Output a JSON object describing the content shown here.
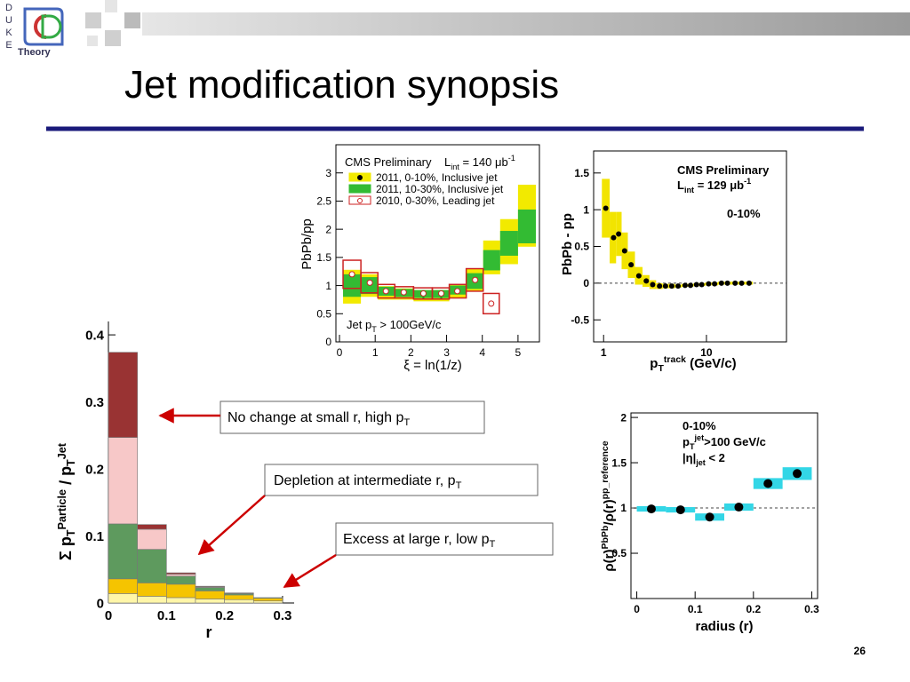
{
  "header": {
    "title": "Jet modification synopsis",
    "logo_letters": [
      "D",
      "U",
      "K",
      "E"
    ],
    "logo_text": "Theory"
  },
  "callouts": [
    [
      {
        "text": "No change at small r, high p"
      },
      {
        "text": "T",
        "pos": "sub"
      }
    ],
    [
      {
        "text": "Depletion at intermediate r, p"
      },
      {
        "text": "T",
        "pos": "sub"
      }
    ],
    [
      {
        "text": "Excess at large r, low p"
      },
      {
        "text": "T",
        "pos": "sub"
      }
    ]
  ],
  "page_number": "26",
  "charts": [
    {
      "type": "errorbar",
      "xlabel": [
        {
          "text": "ξ = ln(1/z)"
        }
      ],
      "ylabel": [
        {
          "text": "PbPb/pp"
        }
      ],
      "annotations": [
        [
          {
            "text": "CMS Preliminary"
          }
        ],
        [
          {
            "text": "L"
          },
          {
            "text": "int",
            "pos": "sub"
          },
          {
            "text": " = 140 μb"
          },
          {
            "text": "-1",
            "pos": "sup"
          }
        ],
        [
          {
            "text": "Jet p"
          },
          {
            "text": "T",
            "pos": "sub"
          },
          {
            "text": " > 100GeV/c"
          }
        ]
      ],
      "xlim": [
        -0.1,
        5.6
      ],
      "xticks": [
        0,
        1,
        2,
        3,
        4,
        5
      ],
      "ylim": [
        0,
        3.5
      ],
      "yticks": [
        0,
        0.5,
        1,
        1.5,
        2,
        2.5,
        3
      ],
      "series": [
        {
          "name": "2011, 0-10%, Inclusive jet",
          "marker": "circle",
          "color": "#000000",
          "band": "fill",
          "band_color": "#f2ea00",
          "x": [
            0.35,
            0.85,
            1.3,
            1.8,
            2.35,
            2.85,
            3.3,
            3.8,
            4.25,
            4.75,
            5.25
          ],
          "values": [
            0.98,
            1.0,
            0.87,
            0.85,
            0.82,
            0.82,
            0.9,
            1.1,
            1.5,
            1.78,
            2.24
          ],
          "errors": [
            0.3,
            0.2,
            0.12,
            0.1,
            0.1,
            0.1,
            0.12,
            0.2,
            0.3,
            0.4,
            0.55
          ]
        },
        {
          "name": "2011, 10-30%, Inclusive jet",
          "marker": "none",
          "color": "#33bb33",
          "band": "fill",
          "band_color": "#33bb33",
          "x": [
            0.35,
            0.85,
            1.3,
            1.8,
            2.35,
            2.85,
            3.3,
            3.8,
            4.25,
            4.75,
            5.25
          ],
          "values": [
            1.0,
            1.0,
            0.9,
            0.87,
            0.85,
            0.85,
            0.92,
            1.08,
            1.45,
            1.75,
            2.05
          ],
          "errors": [
            0.2,
            0.15,
            0.08,
            0.07,
            0.07,
            0.07,
            0.08,
            0.14,
            0.18,
            0.22,
            0.3
          ]
        },
        {
          "name": "2010, 0-30%, Leading jet",
          "marker": "open_circle",
          "color": "#cc2222",
          "band": "outline",
          "band_color": "#cc2222",
          "x": [
            0.35,
            0.85,
            1.3,
            1.8,
            2.35,
            2.85,
            3.3,
            3.8,
            4.25
          ],
          "values": [
            1.2,
            1.05,
            0.9,
            0.88,
            0.86,
            0.86,
            0.9,
            1.1,
            0.68
          ],
          "errors": [
            0.25,
            0.18,
            0.12,
            0.1,
            0.1,
            0.1,
            0.12,
            0.2,
            0.18
          ]
        }
      ]
    },
    {
      "type": "errorbar",
      "xlog": true,
      "hline": 0,
      "xlabel": [
        {
          "text": "p"
        },
        {
          "text": "T",
          "pos": "sub"
        },
        {
          "text": "track",
          "pos": "sup"
        },
        {
          "text": " (GeV/c)"
        }
      ],
      "ylabel": [
        {
          "text": "PbPb - pp"
        }
      ],
      "annotations": [
        [
          {
            "text": "CMS Preliminary"
          }
        ],
        [
          {
            "text": "L"
          },
          {
            "text": "int",
            "pos": "sub"
          },
          {
            "text": " = 129 μb"
          },
          {
            "text": "-1",
            "pos": "sup"
          }
        ],
        [
          {
            "text": "0-10%"
          }
        ]
      ],
      "xlim": [
        0.8,
        60
      ],
      "xticks": [
        1,
        10
      ],
      "ylim": [
        -0.8,
        1.8
      ],
      "yticks": [
        -0.5,
        0,
        0.5,
        1,
        1.5
      ],
      "series": [
        {
          "marker": "circle",
          "color": "#000000",
          "band": "fill",
          "band_color": "#f2e400",
          "x": [
            1.05,
            1.25,
            1.4,
            1.6,
            1.85,
            2.2,
            2.6,
            3,
            3.5,
            4,
            4.6,
            5.3,
            6.2,
            7,
            8,
            9,
            10.5,
            12,
            14,
            16,
            19,
            22,
            26
          ],
          "values": [
            1.02,
            0.62,
            0.67,
            0.44,
            0.25,
            0.1,
            0.03,
            -0.02,
            -0.04,
            -0.04,
            -0.04,
            -0.04,
            -0.03,
            -0.03,
            -0.02,
            -0.02,
            -0.01,
            -0.01,
            0,
            0,
            0,
            0,
            0
          ],
          "errors": [
            0.4,
            0.35,
            0.3,
            0.25,
            0.18,
            0.12,
            0.08,
            0.06,
            0.04,
            0.03,
            0.03,
            0.02,
            0.02,
            0.02,
            0.02,
            0.02,
            0.02,
            0.02,
            0.02,
            0.02,
            0.02,
            0.02,
            0.02
          ]
        }
      ]
    },
    {
      "type": "stacked_hist",
      "xlabel": [
        {
          "text": "r"
        }
      ],
      "ylabel": [
        {
          "text": "Σ p"
        },
        {
          "text": "T",
          "pos": "sub"
        },
        {
          "text": "Particle",
          "pos": "sup"
        },
        {
          "text": " / p"
        },
        {
          "text": "T",
          "pos": "sub"
        },
        {
          "text": "Jet",
          "pos": "sup"
        }
      ],
      "annotations": [],
      "xlim": [
        0,
        0.32
      ],
      "xticks": [
        0,
        0.1,
        0.2,
        0.3
      ],
      "ylim": [
        0,
        0.42
      ],
      "yticks": [
        0,
        0.1,
        0.2,
        0.3,
        0.4
      ],
      "bins": [
        0,
        0.05,
        0.1,
        0.15,
        0.2,
        0.25,
        0.3
      ],
      "series": [
        {
          "color": "#fff6a8",
          "values": [
            0.014,
            0.01,
            0.008,
            0.006,
            0.005,
            0.003
          ]
        },
        {
          "color": "#f5c400",
          "values": [
            0.022,
            0.02,
            0.02,
            0.012,
            0.007,
            0.004
          ]
        },
        {
          "color": "#5e9a5e",
          "values": [
            0.082,
            0.05,
            0.012,
            0.005,
            0.002,
            0.001
          ]
        },
        {
          "color": "#f7c8c8",
          "values": [
            0.129,
            0.03,
            0.003,
            0.001,
            0.0005,
            0
          ]
        },
        {
          "color": "#993333",
          "values": [
            0.127,
            0.007,
            0.002,
            0.001,
            0.0005,
            0
          ]
        }
      ]
    },
    {
      "type": "errorbar",
      "hline": 1,
      "xlabel": [
        {
          "text": "radius (r)"
        }
      ],
      "ylabel": [
        {
          "text": "ρ(r)"
        },
        {
          "text": "PbPb",
          "pos": "sup"
        },
        {
          "text": "/ρ(r)"
        },
        {
          "text": "pp_reference",
          "pos": "sup"
        }
      ],
      "annotations": [
        [
          {
            "text": "0-10%"
          }
        ],
        [
          {
            "text": "p"
          },
          {
            "text": "T",
            "pos": "sub"
          },
          {
            "text": "jet",
            "pos": "sup"
          },
          {
            "text": ">100 GeV/c"
          }
        ],
        [
          {
            "text": "|η|"
          },
          {
            "text": "jet",
            "pos": "sub"
          },
          {
            "text": " < 2"
          }
        ]
      ],
      "xlim": [
        -0.01,
        0.31
      ],
      "xticks": [
        0,
        0.1,
        0.2,
        0.3
      ],
      "ylim": [
        0,
        2.05
      ],
      "yticks": [
        0.5,
        1,
        1.5,
        2
      ],
      "series": [
        {
          "marker": "circle",
          "color": "#000000",
          "band": "fill",
          "band_color": "#33d6e6",
          "x": [
            0.025,
            0.075,
            0.125,
            0.175,
            0.225,
            0.275
          ],
          "values": [
            0.99,
            0.98,
            0.9,
            1.01,
            1.27,
            1.38
          ],
          "errors": [
            0.03,
            0.03,
            0.04,
            0.04,
            0.06,
            0.07
          ]
        }
      ]
    }
  ]
}
